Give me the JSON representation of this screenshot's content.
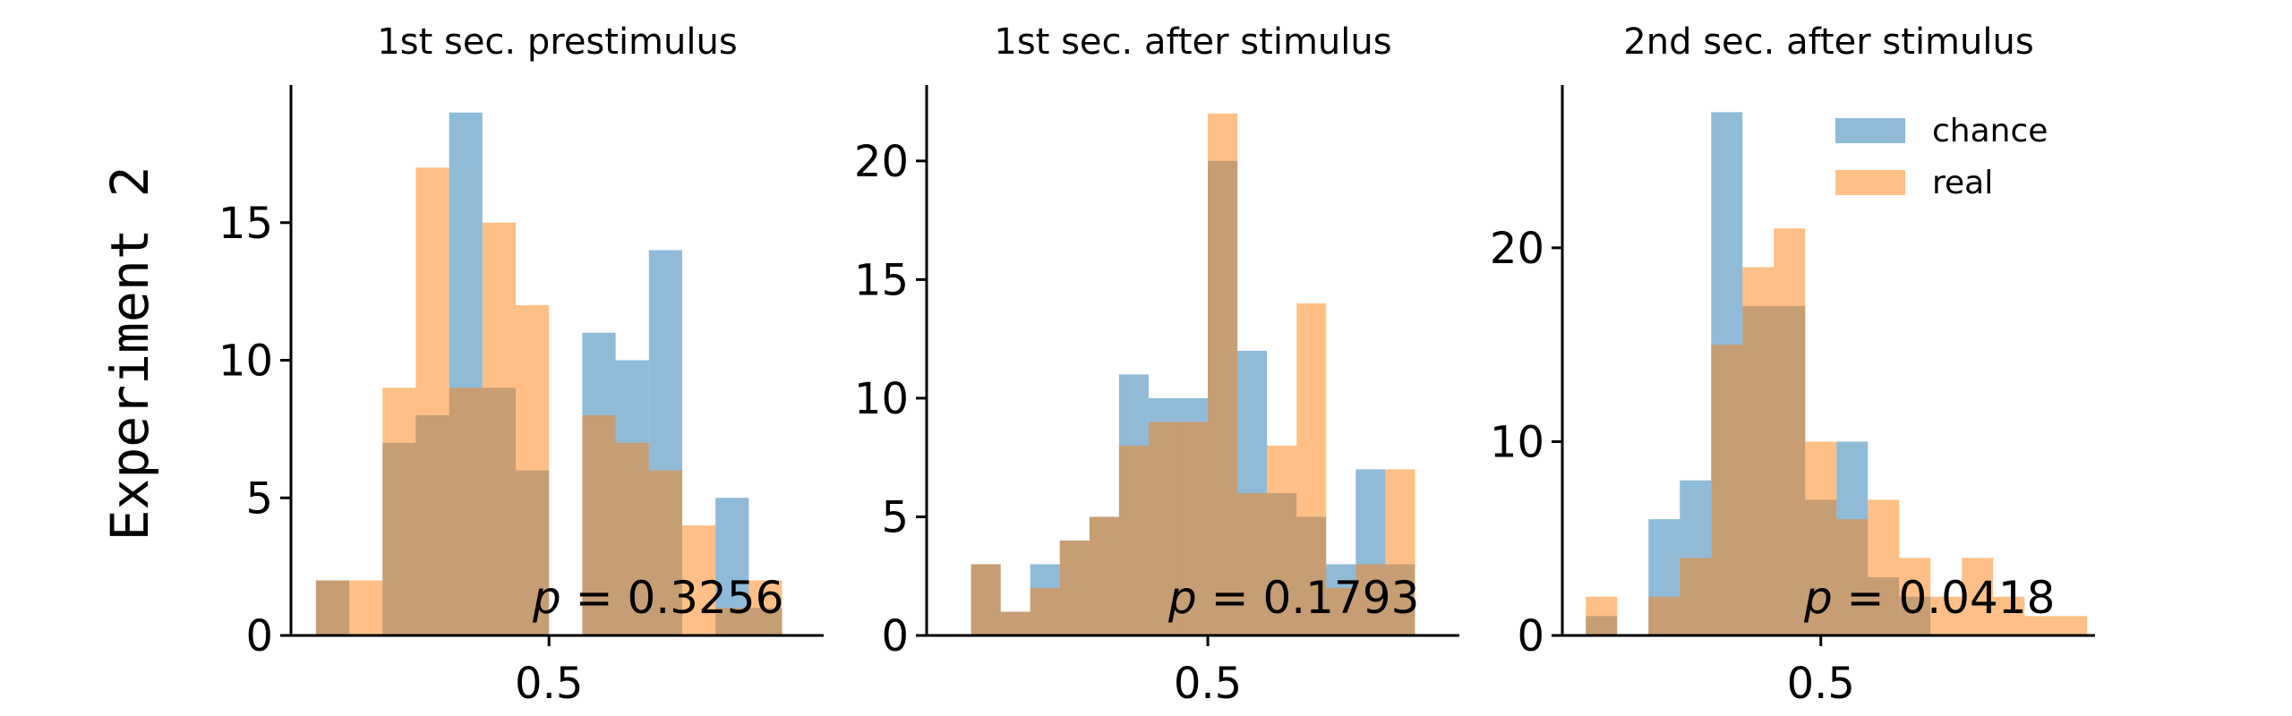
{
  "row_label": "Experiment 2",
  "colors": {
    "chance": "#1f77b4",
    "real": "#ff7f0e",
    "alpha": 0.5
  },
  "chart_data": [
    {
      "type": "histogram",
      "title": "1st sec. prestimulus",
      "p_label": "p = ",
      "p_value": "0.3256",
      "xticks": [
        0.5
      ],
      "xtick_labels": [
        "0.5"
      ],
      "ylim": [
        0,
        20
      ],
      "yticks": [
        0,
        5,
        10,
        15
      ],
      "bins": [
        0.22,
        0.26,
        0.3,
        0.34,
        0.38,
        0.42,
        0.46,
        0.5,
        0.54,
        0.58,
        0.62,
        0.66,
        0.7,
        0.74,
        0.78,
        0.82
      ],
      "xlim": [
        0.19,
        0.83
      ],
      "series": [
        {
          "name": "chance",
          "values": [
            2,
            0,
            7,
            8,
            19,
            9,
            6,
            0,
            11,
            10,
            14,
            0,
            5,
            1,
            0
          ]
        },
        {
          "name": "real",
          "values": [
            2,
            2,
            9,
            17,
            9,
            15,
            12,
            0,
            8,
            7,
            6,
            4,
            1,
            2,
            0
          ]
        }
      ]
    },
    {
      "type": "histogram",
      "title": "1st sec. after stimulus",
      "p_label": "p = ",
      "p_value": "0.1793",
      "xticks": [
        0.5
      ],
      "xtick_labels": [
        "0.5"
      ],
      "ylim": [
        0,
        23.2
      ],
      "yticks": [
        0,
        5,
        10,
        15,
        20
      ],
      "bins": [
        0.18,
        0.22,
        0.26,
        0.3,
        0.34,
        0.38,
        0.42,
        0.46,
        0.5,
        0.54,
        0.58,
        0.62,
        0.66,
        0.7,
        0.74,
        0.78
      ],
      "xlim": [
        0.12,
        0.84
      ],
      "series": [
        {
          "name": "chance",
          "values": [
            3,
            1,
            3,
            4,
            5,
            11,
            10,
            10,
            20,
            12,
            6,
            5,
            3,
            7,
            3
          ]
        },
        {
          "name": "real",
          "values": [
            3,
            1,
            2,
            4,
            5,
            8,
            9,
            9,
            22,
            6,
            8,
            14,
            2,
            3,
            7
          ]
        }
      ]
    },
    {
      "type": "histogram",
      "title": "2nd sec. after stimulus",
      "p_label": "p = ",
      "p_value": "0.0418",
      "xticks": [
        0.5
      ],
      "xtick_labels": [
        "0.5"
      ],
      "ylim": [
        0,
        28.4
      ],
      "yticks": [
        0,
        10,
        20
      ],
      "bins": [
        0.2,
        0.24,
        0.28,
        0.32,
        0.36,
        0.4,
        0.44,
        0.48,
        0.52,
        0.56,
        0.6,
        0.64,
        0.68,
        0.72,
        0.76,
        0.8,
        0.84
      ],
      "xlim": [
        0.17,
        0.85
      ],
      "series": [
        {
          "name": "chance",
          "values": [
            1,
            0,
            6,
            8,
            27,
            17,
            17,
            7,
            10,
            3,
            2,
            0,
            0,
            0,
            0,
            0
          ]
        },
        {
          "name": "real",
          "values": [
            2,
            0,
            2,
            4,
            15,
            19,
            21,
            10,
            6,
            7,
            4,
            2,
            4,
            2,
            1,
            1
          ]
        }
      ],
      "legend": {
        "position": "top-right",
        "entries": [
          "chance",
          "real"
        ]
      }
    }
  ]
}
